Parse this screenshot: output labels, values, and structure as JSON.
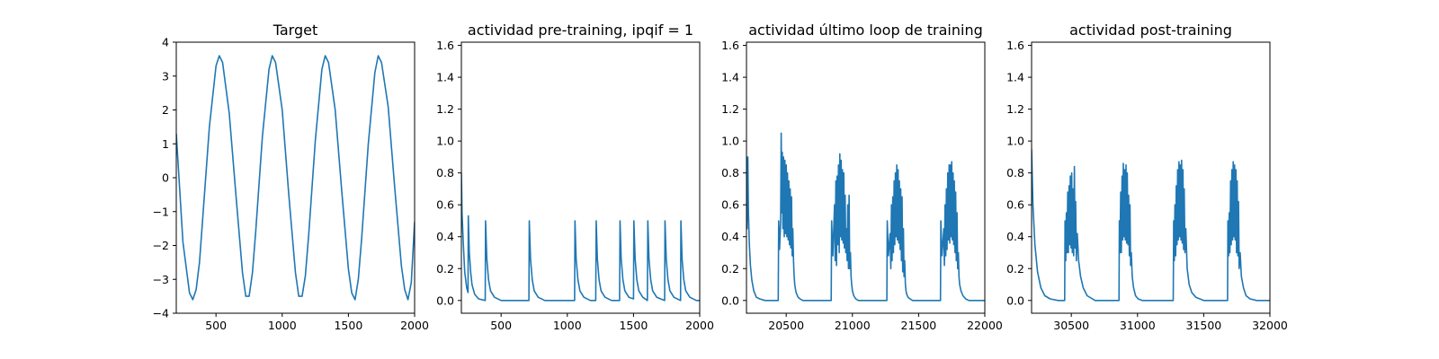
{
  "colors": {
    "line": "#1f77b4",
    "axis": "#000000",
    "background": "#ffffff"
  },
  "chart_data": [
    {
      "type": "line",
      "title": "Target",
      "xlabel": "",
      "ylabel": "",
      "xlim": [
        200,
        2000
      ],
      "ylim": [
        -4,
        4
      ],
      "xticks": [
        500,
        1000,
        1500,
        2000
      ],
      "yticks": [
        -4,
        -3,
        -2,
        -1,
        0,
        1,
        2,
        3,
        4
      ],
      "grid": false,
      "series": [
        {
          "x": [
            200,
            250,
            300,
            325,
            350,
            375,
            400,
            450,
            500,
            525,
            550,
            600,
            650,
            700,
            725,
            750,
            775,
            800,
            850,
            900,
            925,
            950,
            1000,
            1050,
            1100,
            1125,
            1150,
            1175,
            1200,
            1250,
            1300,
            1325,
            1350,
            1400,
            1450,
            1500,
            1525,
            1550,
            1575,
            1600,
            1650,
            1700,
            1725,
            1750,
            1800,
            1850,
            1900,
            1925,
            1950,
            1975,
            2000
          ],
          "y": [
            1.3,
            -1.9,
            -3.4,
            -3.6,
            -3.3,
            -2.5,
            -1.2,
            1.5,
            3.3,
            3.6,
            3.4,
            1.9,
            -0.5,
            -2.8,
            -3.5,
            -3.5,
            -2.8,
            -1.6,
            1.2,
            3.2,
            3.6,
            3.4,
            2.0,
            -0.5,
            -2.8,
            -3.5,
            -3.5,
            -2.9,
            -1.7,
            1.1,
            3.2,
            3.6,
            3.4,
            2.0,
            -0.4,
            -2.7,
            -3.4,
            -3.6,
            -3.0,
            -1.8,
            1.0,
            3.1,
            3.6,
            3.4,
            2.1,
            -0.3,
            -2.6,
            -3.3,
            -3.6,
            -3.1,
            -1.3
          ]
        }
      ]
    },
    {
      "type": "line",
      "title": "actividad pre-training, ipqif = 1",
      "xlabel": "",
      "ylabel": "",
      "xlim": [
        200,
        2000
      ],
      "ylim": [
        -0.08,
        1.62
      ],
      "xticks": [
        500,
        1000,
        1500,
        2000
      ],
      "yticks": [
        0.0,
        0.2,
        0.4,
        0.6,
        0.8,
        1.0,
        1.2,
        1.4,
        1.6
      ],
      "grid": false,
      "series": [
        {
          "x": [
            200,
            205,
            215,
            225,
            240,
            250,
            252,
            260,
            270,
            280,
            300,
            330,
            380,
            383,
            392,
            405,
            420,
            450,
            500,
            600,
            700,
            710,
            713,
            722,
            735,
            750,
            780,
            830,
            900,
            1000,
            1055,
            1058,
            1067,
            1080,
            1095,
            1125,
            1175,
            1215,
            1218,
            1227,
            1240,
            1255,
            1285,
            1335,
            1395,
            1398,
            1407,
            1420,
            1435,
            1465,
            1500,
            1503,
            1512,
            1525,
            1540,
            1570,
            1605,
            1608,
            1617,
            1630,
            1645,
            1675,
            1735,
            1738,
            1747,
            1760,
            1775,
            1805,
            1855,
            1858,
            1867,
            1880,
            1895,
            1925,
            1975,
            2000
          ],
          "y": [
            0.8,
            0.55,
            0.35,
            0.18,
            0.08,
            0.05,
            0.53,
            0.3,
            0.18,
            0.1,
            0.04,
            0.01,
            0.0,
            0.5,
            0.26,
            0.13,
            0.06,
            0.02,
            0.0,
            0.0,
            0.0,
            0.0,
            0.5,
            0.26,
            0.13,
            0.06,
            0.02,
            0.0,
            0.0,
            0.0,
            0.0,
            0.5,
            0.26,
            0.13,
            0.06,
            0.02,
            0.0,
            0.0,
            0.5,
            0.26,
            0.13,
            0.06,
            0.02,
            0.0,
            0.0,
            0.5,
            0.26,
            0.13,
            0.06,
            0.02,
            0.01,
            0.5,
            0.26,
            0.13,
            0.06,
            0.02,
            0.0,
            0.5,
            0.26,
            0.13,
            0.06,
            0.02,
            0.0,
            0.5,
            0.26,
            0.13,
            0.06,
            0.02,
            0.0,
            0.5,
            0.26,
            0.13,
            0.06,
            0.02,
            0.0,
            0.0
          ]
        }
      ]
    },
    {
      "type": "line",
      "title": "actividad último loop de training",
      "xlabel": "",
      "ylabel": "",
      "xlim": [
        20200,
        22000
      ],
      "ylim": [
        -0.08,
        1.62
      ],
      "xticks": [
        20500,
        21000,
        21500,
        22000
      ],
      "yticks": [
        0.0,
        0.2,
        0.4,
        0.6,
        0.8,
        1.0,
        1.2,
        1.4,
        1.6
      ],
      "grid": false,
      "series": [
        {
          "x": [
            20200,
            20205,
            20210,
            20215,
            20222,
            20230,
            20240,
            20255,
            20275,
            20300,
            20340,
            20400,
            20440,
            20443,
            20450,
            20458,
            20462,
            20467,
            20470,
            20475,
            20480,
            20485,
            20490,
            20495,
            20500,
            20505,
            20510,
            20515,
            20520,
            20525,
            20530,
            20535,
            20540,
            20545,
            20550,
            20555,
            20560,
            20565,
            20570,
            20575,
            20580,
            20590,
            20605,
            20625,
            20650,
            20690,
            20750,
            20800,
            20840,
            20843,
            20852,
            20865,
            20870,
            20875,
            20880,
            20885,
            20890,
            20895,
            20900,
            20905,
            20910,
            20915,
            20920,
            20925,
            20930,
            20935,
            20940,
            20945,
            20950,
            20955,
            20960,
            20965,
            20970,
            20975,
            20980,
            20985,
            20990,
            20995,
            21000,
            21010,
            21025,
            21045,
            21070,
            21110,
            21170,
            21220,
            21260,
            21263,
            21272,
            21285,
            21290,
            21295,
            21300,
            21305,
            21310,
            21315,
            21320,
            21325,
            21330,
            21335,
            21340,
            21345,
            21350,
            21355,
            21360,
            21365,
            21370,
            21375,
            21380,
            21385,
            21390,
            21395,
            21400,
            21405,
            21410,
            21420,
            21435,
            21455,
            21480,
            21520,
            21580,
            21630,
            21665,
            21668,
            21677,
            21690,
            21695,
            21700,
            21705,
            21710,
            21715,
            21720,
            21725,
            21730,
            21735,
            21740,
            21745,
            21750,
            21755,
            21760,
            21765,
            21770,
            21775,
            21780,
            21785,
            21790,
            21795,
            21800,
            21805,
            21810,
            21820,
            21835,
            21855,
            21880,
            21920,
            21970,
            22000
          ],
          "y": [
            0.9,
            0.45,
            0.9,
            0.55,
            0.35,
            0.22,
            0.13,
            0.06,
            0.02,
            0.01,
            0.0,
            0.0,
            0.0,
            0.5,
            0.32,
            0.5,
            1.05,
            0.55,
            0.93,
            0.45,
            0.9,
            0.4,
            0.88,
            0.42,
            0.85,
            0.4,
            0.8,
            0.38,
            0.75,
            0.35,
            0.7,
            0.33,
            0.65,
            0.28,
            0.45,
            0.25,
            0.15,
            0.1,
            0.07,
            0.05,
            0.04,
            0.02,
            0.01,
            0.0,
            0.0,
            0.0,
            0.0,
            0.0,
            0.0,
            0.5,
            0.28,
            0.6,
            0.25,
            0.75,
            0.22,
            0.78,
            0.35,
            0.85,
            0.3,
            0.92,
            0.4,
            0.88,
            0.38,
            0.82,
            0.36,
            0.8,
            0.33,
            0.66,
            0.3,
            0.45,
            0.25,
            0.6,
            0.2,
            0.66,
            0.2,
            0.3,
            0.15,
            0.1,
            0.06,
            0.03,
            0.01,
            0.0,
            0.0,
            0.0,
            0.0,
            0.0,
            0.0,
            0.5,
            0.28,
            0.42,
            0.2,
            0.6,
            0.25,
            0.65,
            0.3,
            0.75,
            0.35,
            0.8,
            0.4,
            0.85,
            0.38,
            0.82,
            0.36,
            0.75,
            0.32,
            0.7,
            0.25,
            0.65,
            0.18,
            0.45,
            0.15,
            0.25,
            0.1,
            0.06,
            0.04,
            0.02,
            0.01,
            0.0,
            0.0,
            0.0,
            0.0,
            0.0,
            0.0,
            0.5,
            0.28,
            0.45,
            0.22,
            0.6,
            0.28,
            0.7,
            0.32,
            0.8,
            0.38,
            0.85,
            0.36,
            0.85,
            0.4,
            0.87,
            0.38,
            0.8,
            0.35,
            0.75,
            0.3,
            0.68,
            0.25,
            0.55,
            0.2,
            0.3,
            0.15,
            0.1,
            0.06,
            0.03,
            0.01,
            0.0,
            0.0,
            0.0,
            0.0
          ]
        }
      ]
    },
    {
      "type": "line",
      "title": "actividad post-training",
      "xlabel": "",
      "ylabel": "",
      "xlim": [
        30200,
        32000
      ],
      "ylim": [
        -0.08,
        1.62
      ],
      "xticks": [
        30500,
        31000,
        31500,
        32000
      ],
      "yticks": [
        0.0,
        0.2,
        0.4,
        0.6,
        0.8,
        1.0,
        1.2,
        1.4,
        1.6
      ],
      "grid": false,
      "series": [
        {
          "x": [
            30200,
            30210,
            30225,
            30245,
            30270,
            30300,
            30340,
            30400,
            30450,
            30453,
            30458,
            30463,
            30468,
            30473,
            30478,
            30483,
            30488,
            30493,
            30498,
            30503,
            30508,
            30513,
            30518,
            30523,
            30528,
            30533,
            30538,
            30545,
            30555,
            30570,
            30590,
            30620,
            30680,
            30760,
            30860,
            30863,
            30868,
            30873,
            30878,
            30883,
            30888,
            30893,
            30898,
            30903,
            30908,
            30913,
            30918,
            30923,
            30928,
            30933,
            30938,
            30943,
            30948,
            30953,
            30960,
            30970,
            30985,
            31005,
            31035,
            31100,
            31200,
            31270,
            31273,
            31278,
            31283,
            31288,
            31293,
            31298,
            31303,
            31308,
            31313,
            31318,
            31323,
            31328,
            31333,
            31338,
            31343,
            31348,
            31353,
            31358,
            31365,
            31375,
            31390,
            31410,
            31440,
            31500,
            31600,
            31680,
            31683,
            31688,
            31693,
            31698,
            31703,
            31708,
            31713,
            31718,
            31723,
            31728,
            31733,
            31738,
            31743,
            31748,
            31753,
            31758,
            31763,
            31768,
            31775,
            31785,
            31800,
            31820,
            31850,
            31900,
            31950,
            32000
          ],
          "y": [
            0.95,
            0.6,
            0.35,
            0.18,
            0.08,
            0.03,
            0.01,
            0.0,
            0.0,
            0.5,
            0.25,
            0.55,
            0.3,
            0.68,
            0.3,
            0.72,
            0.35,
            0.78,
            0.33,
            0.8,
            0.3,
            0.7,
            0.28,
            0.84,
            0.33,
            0.62,
            0.25,
            0.42,
            0.25,
            0.15,
            0.08,
            0.03,
            0.0,
            0.0,
            0.0,
            0.5,
            0.3,
            0.68,
            0.3,
            0.78,
            0.38,
            0.86,
            0.4,
            0.82,
            0.38,
            0.85,
            0.36,
            0.8,
            0.35,
            0.66,
            0.28,
            0.6,
            0.22,
            0.3,
            0.15,
            0.08,
            0.03,
            0.01,
            0.0,
            0.0,
            0.0,
            0.0,
            0.5,
            0.25,
            0.6,
            0.28,
            0.72,
            0.35,
            0.82,
            0.38,
            0.87,
            0.4,
            0.85,
            0.38,
            0.88,
            0.36,
            0.82,
            0.32,
            0.7,
            0.3,
            0.45,
            0.2,
            0.1,
            0.05,
            0.02,
            0.0,
            0.0,
            0.0,
            0.5,
            0.28,
            0.55,
            0.3,
            0.75,
            0.35,
            0.82,
            0.38,
            0.87,
            0.4,
            0.85,
            0.38,
            0.82,
            0.3,
            0.75,
            0.28,
            0.62,
            0.2,
            0.3,
            0.15,
            0.08,
            0.03,
            0.01,
            0.0,
            0.0,
            0.0
          ]
        }
      ]
    }
  ]
}
